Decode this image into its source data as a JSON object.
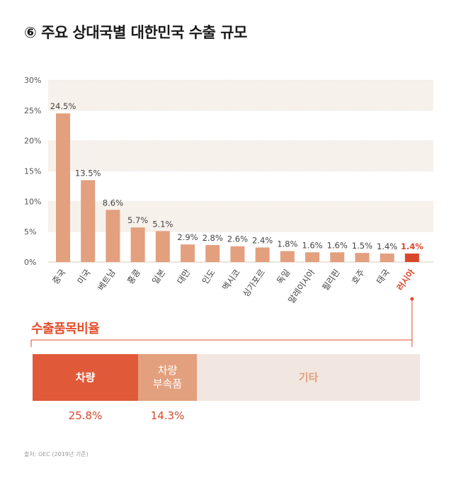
{
  "title": "⑥ 주요 상대국별 대한민국 수출 규모",
  "colors": {
    "bar": "#e3a07e",
    "highlight": "#d9472a",
    "band": "#f7f1ec",
    "accent": "#e24e2b"
  },
  "chart_data": {
    "type": "bar",
    "categories": [
      "중국",
      "미국",
      "베트남",
      "홍콩",
      "일본",
      "대만",
      "인도",
      "멕시코",
      "싱가포르",
      "독일",
      "말레이시아",
      "필리핀",
      "호주",
      "태국",
      "러시아"
    ],
    "values": [
      24.5,
      13.5,
      8.6,
      5.7,
      5.1,
      2.9,
      2.8,
      2.6,
      2.4,
      1.8,
      1.6,
      1.6,
      1.5,
      1.4,
      1.4
    ],
    "value_labels": [
      "24.5%",
      "13.5%",
      "8.6%",
      "5.7%",
      "5.1%",
      "2.9%",
      "2.8%",
      "2.6%",
      "2.4%",
      "1.8%",
      "1.6%",
      "1.6%",
      "1.5%",
      "1.4%",
      "1.4%"
    ],
    "highlight_index": 14,
    "yticks": [
      0,
      5,
      10,
      15,
      20,
      25,
      30
    ],
    "ytick_labels": [
      "0%",
      "5%",
      "10%",
      "15%",
      "20%",
      "25%",
      "30%"
    ],
    "ylim": [
      0,
      30
    ],
    "title": "⑥ 주요 상대국별 대한민국 수출 규모",
    "xlabel": "",
    "ylabel": ""
  },
  "breakdown": {
    "label": "수출품목비율",
    "segments": [
      {
        "label": "차량",
        "percent": 25.8,
        "value_label": "25.8%"
      },
      {
        "label_line1": "차량",
        "label_line2": "부속품",
        "percent": 14.3,
        "value_label": "14.3%"
      },
      {
        "label": "기타"
      }
    ]
  },
  "source": "출처: OEC (2019년 기준)"
}
